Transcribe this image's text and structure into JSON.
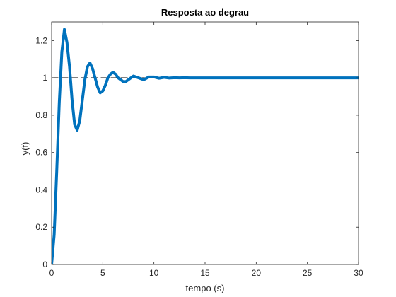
{
  "chart_data": {
    "type": "line",
    "title": "Resposta ao degrau",
    "xlabel": "tempo (s)",
    "ylabel": "y(t)",
    "xlim": [
      0,
      30
    ],
    "ylim": [
      0,
      1.3
    ],
    "grid": false,
    "box": true,
    "x_ticks": [
      0,
      5,
      10,
      15,
      20,
      25,
      30
    ],
    "x_tick_labels": [
      "0",
      "5",
      "10",
      "15",
      "20",
      "25",
      "30"
    ],
    "y_ticks": [
      0,
      0.2,
      0.4,
      0.6,
      0.8,
      1,
      1.2
    ],
    "y_tick_labels": [
      "0",
      "0.2",
      "0.4",
      "0.6",
      "0.8",
      "1",
      "1.2"
    ],
    "series": [
      {
        "color": "#0072BD",
        "style": "solid",
        "x": [
          0,
          0.25,
          0.5,
          0.75,
          1.0,
          1.25,
          1.5,
          1.75,
          2.0,
          2.25,
          2.5,
          2.75,
          3.0,
          3.25,
          3.5,
          3.75,
          4.0,
          4.25,
          4.5,
          4.75,
          5.0,
          5.25,
          5.5,
          5.75,
          6.0,
          6.25,
          6.5,
          6.75,
          7.0,
          7.25,
          7.5,
          7.75,
          8.0,
          8.5,
          9.0,
          9.5,
          10.0,
          10.5,
          11.0,
          11.5,
          12.0,
          12.5,
          13.0,
          13.5,
          14.0,
          14.5,
          15.0,
          15.5,
          16.0,
          16.5,
          17.0,
          17.5,
          18.0,
          18.5,
          19.0,
          20.0,
          21.0,
          22.0,
          23.0,
          24.0,
          25.0,
          26.0,
          27.0,
          28.0,
          29.0,
          30.0
        ],
        "y": [
          0,
          0.16,
          0.5,
          0.87,
          1.14,
          1.26,
          1.19,
          1.06,
          0.88,
          0.75,
          0.72,
          0.77,
          0.88,
          0.99,
          1.06,
          1.08,
          1.05,
          1.0,
          0.95,
          0.92,
          0.93,
          0.96,
          1.0,
          1.02,
          1.03,
          1.02,
          1.0,
          0.99,
          0.98,
          0.98,
          0.99,
          1.0,
          1.01,
          1.0,
          0.99,
          1.005,
          1.005,
          0.998,
          1.003,
          0.999,
          1.001,
          1.0,
          1.001,
          1.0,
          1.0,
          1.0,
          1.0,
          1.0,
          1.0,
          1.0,
          1.0,
          1.0,
          1.0,
          1.0,
          1.0,
          1.0,
          1.0,
          1.0,
          1.0,
          1.0,
          1.0,
          1.0,
          1.0,
          1.0,
          1.0,
          1.0
        ]
      },
      {
        "color": "#000000",
        "style": "dashed",
        "x": [
          0,
          30
        ],
        "y": [
          1,
          1
        ]
      }
    ]
  }
}
